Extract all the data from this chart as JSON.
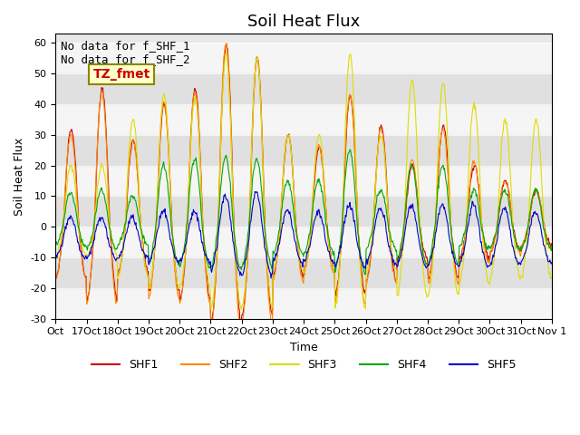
{
  "title": "Soil Heat Flux",
  "ylabel": "Soil Heat Flux",
  "xlabel": "Time",
  "ylim": [
    -30,
    63
  ],
  "yticks": [
    -30,
    -20,
    -10,
    0,
    10,
    20,
    30,
    40,
    50,
    60
  ],
  "colors": {
    "SHF1": "#cc0000",
    "SHF2": "#ff8800",
    "SHF3": "#dddd00",
    "SHF4": "#00aa00",
    "SHF5": "#0000cc"
  },
  "no_data_text": [
    "No data for f_SHF_1",
    "No data for f_SHF_2"
  ],
  "tz_label": "TZ_fmet",
  "tz_label_color": "#cc0000",
  "tz_box_facecolor": "#ffffcc",
  "tz_box_edgecolor": "#888800",
  "annotation_fontsize": 9,
  "title_fontsize": 13,
  "legend_fontsize": 9,
  "axis_fontsize": 9,
  "tick_fontsize": 8,
  "background_color": "#ffffff",
  "plot_bg_color": "#e8e8e8",
  "band_color_light": "#f5f5f5",
  "band_color_dark": "#e0e0e0",
  "n_days": 16,
  "points_per_day": 48,
  "start_day": 17,
  "noise_level": 0.5,
  "x_tick_labels": [
    "Oct",
    "17Oct",
    "18Oct",
    "19Oct",
    "20Oct",
    "21Oct",
    "22Oct",
    "23Oct",
    "24Oct",
    "25Oct",
    "26Oct",
    "27Oct",
    "28Oct",
    "29Oct",
    "30Oct",
    "31Oct",
    "Nov 1"
  ],
  "amp_mod1": [
    32,
    45,
    28,
    40,
    45,
    60,
    55,
    30,
    26,
    43,
    33,
    20,
    33,
    20,
    15,
    12
  ],
  "amp_mod2": [
    30,
    44,
    28,
    41,
    44,
    60,
    55,
    30,
    27,
    43,
    32,
    22,
    32,
    21,
    15,
    12
  ],
  "amp_mod3": [
    20,
    20,
    35,
    43,
    42,
    56,
    55,
    30,
    30,
    56,
    30,
    48,
    47,
    40,
    35,
    35
  ],
  "amp_mod4": [
    11,
    12,
    10,
    20,
    22,
    23,
    22,
    15,
    15,
    25,
    12,
    20,
    20,
    12,
    12,
    12
  ],
  "amp_mod5": [
    8,
    8,
    8,
    10,
    10,
    15,
    16,
    10,
    10,
    12,
    11,
    12,
    12,
    12,
    11,
    10
  ]
}
